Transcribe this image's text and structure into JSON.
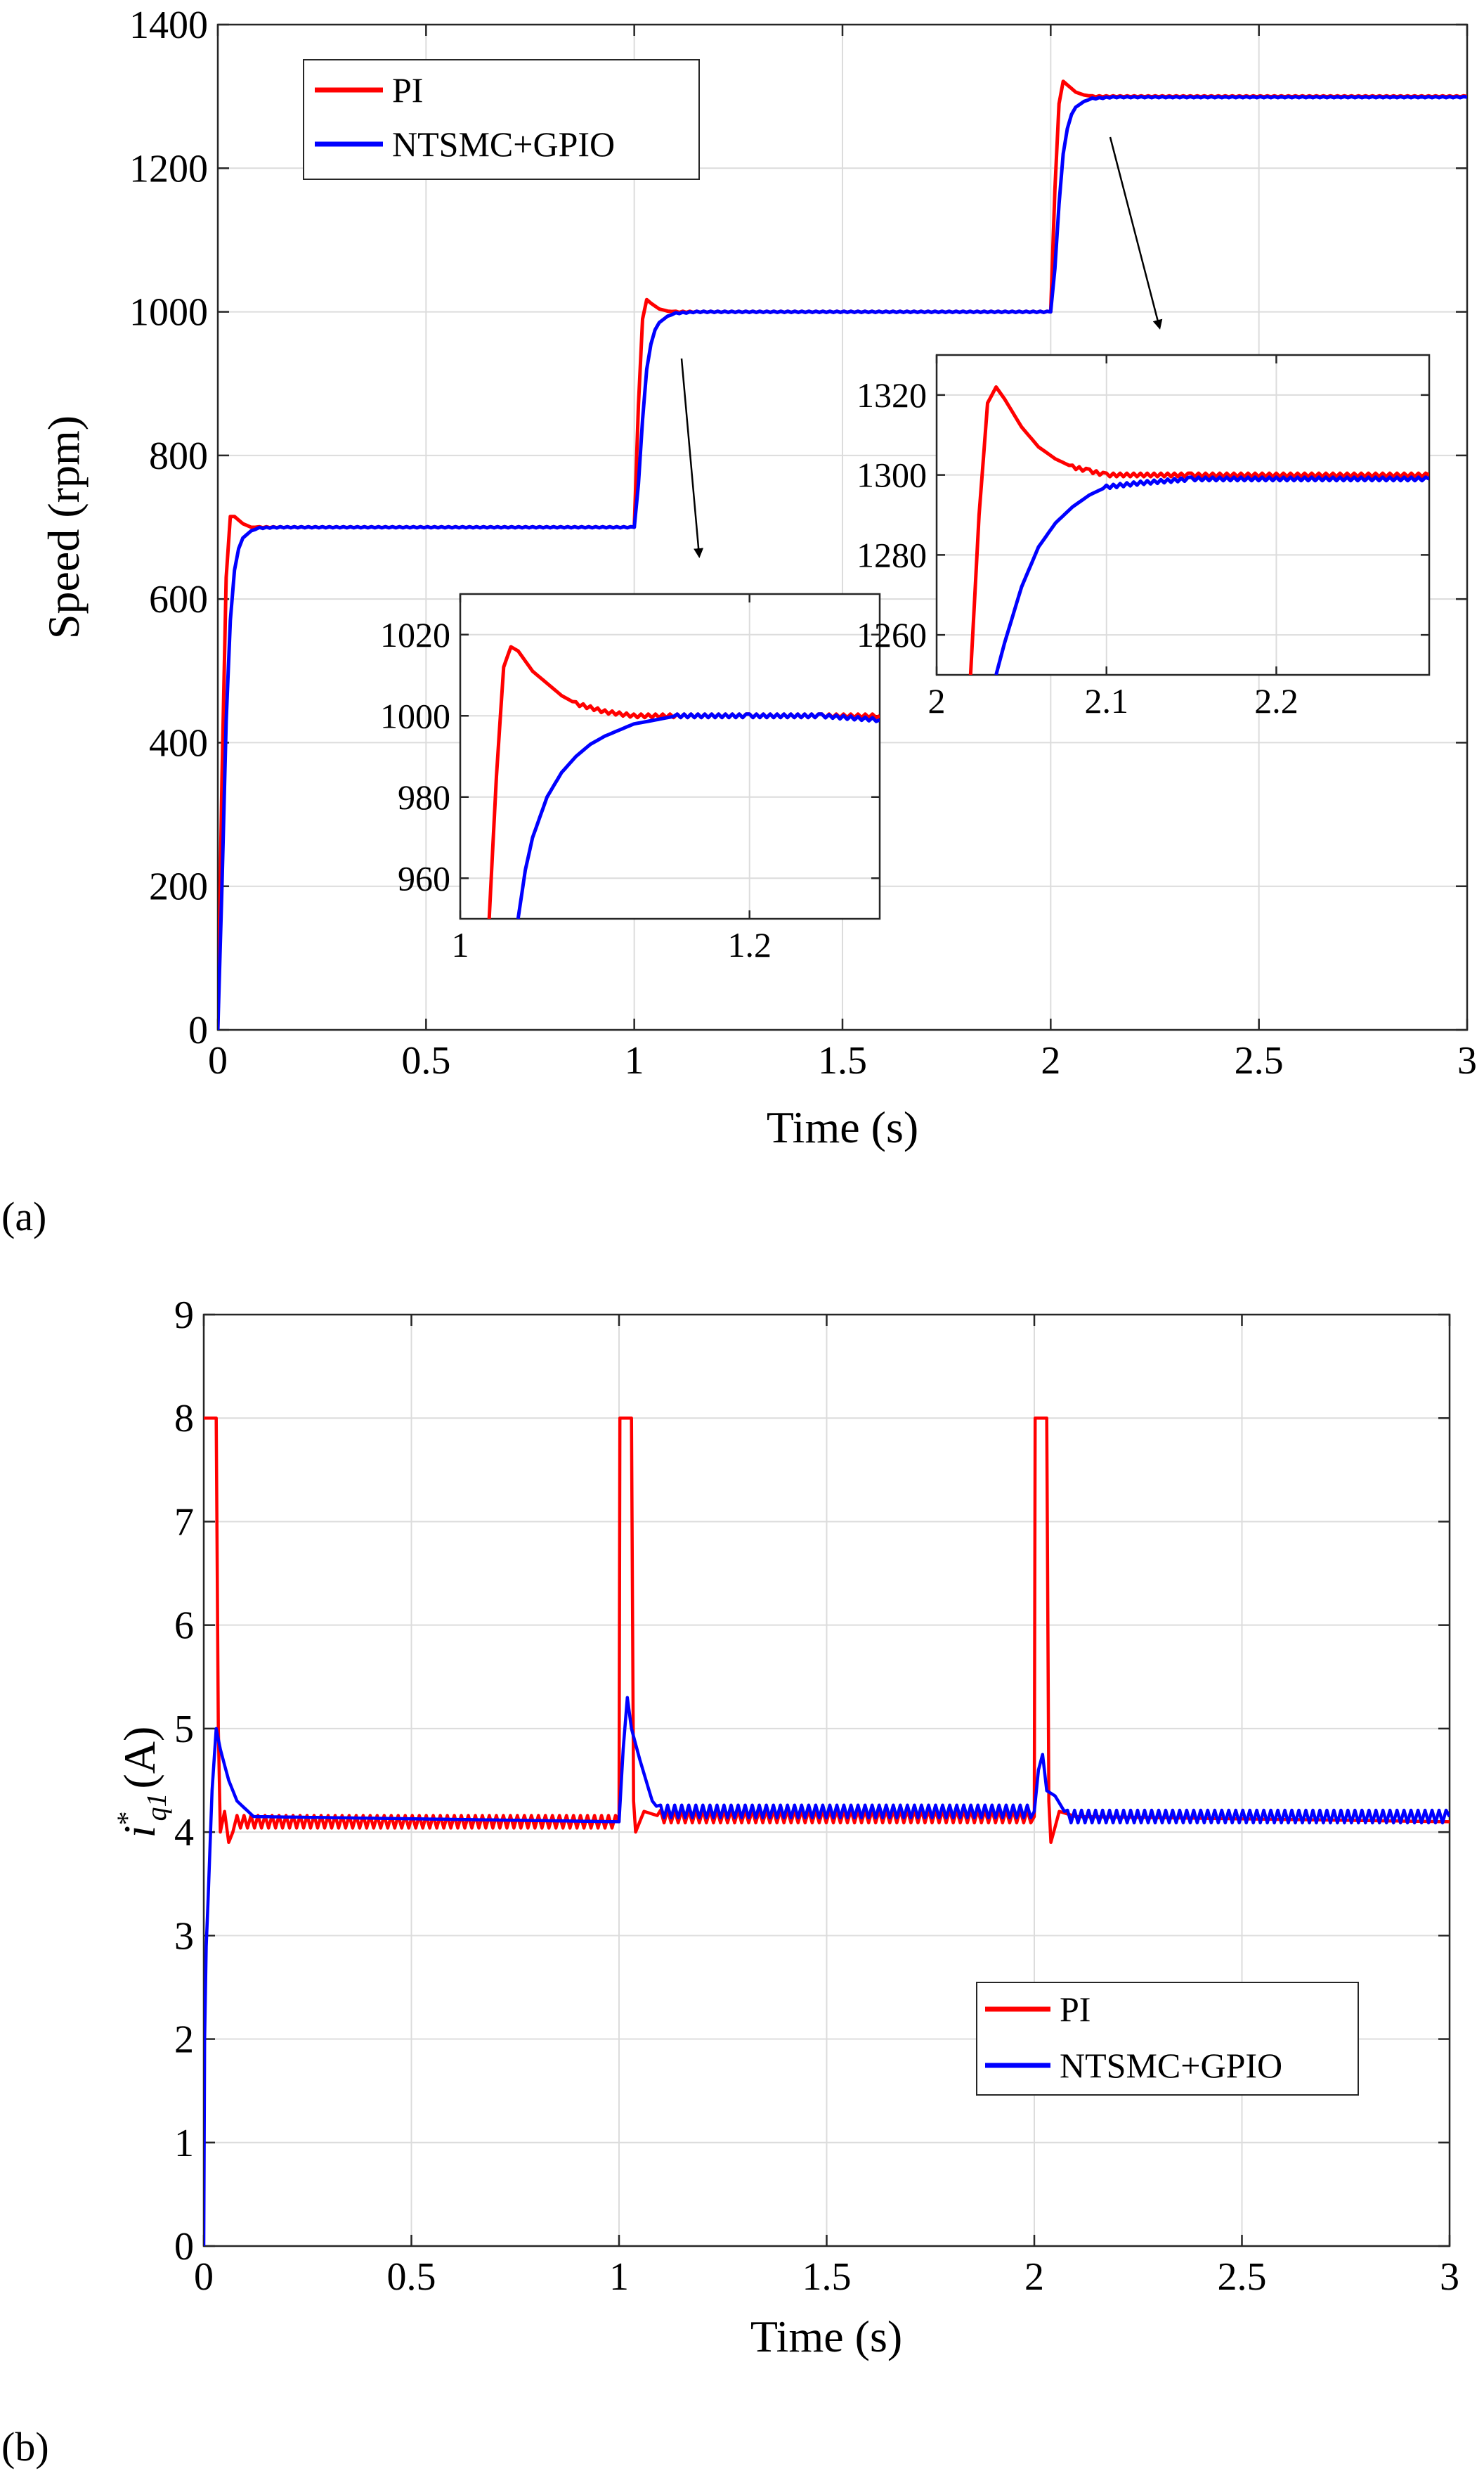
{
  "figure": {
    "panel_a_label": "(a)",
    "panel_b_label": "(b)"
  },
  "colors": {
    "PI": "#ff0000",
    "NTSMC+GPIO": "#0000ff",
    "grid": "#dcdcdc",
    "axes": "#262626"
  },
  "chart_data": [
    {
      "id": "a",
      "type": "line",
      "panel_label": "(a)",
      "xlabel": "Time (s)",
      "ylabel": "Speed (rpm)",
      "xlim": [
        0,
        3
      ],
      "ylim": [
        0,
        1400
      ],
      "xticks": [
        0,
        0.5,
        1,
        1.5,
        2,
        2.5,
        3
      ],
      "xtick_labels": [
        "0",
        "0.5",
        "1",
        "1.5",
        "2",
        "2.5",
        "3"
      ],
      "yticks": [
        0,
        200,
        400,
        600,
        800,
        1000,
        1200,
        1400
      ],
      "ytick_labels": [
        "0",
        "200",
        "400",
        "600",
        "800",
        "1000",
        "1200",
        "1400"
      ],
      "grid": true,
      "legend": {
        "entries": [
          "PI",
          "NTSMC+GPIO"
        ],
        "location": "top-left"
      },
      "series": [
        {
          "name": "PI",
          "color": "#ff0000",
          "x": [
            0,
            0.01,
            0.02,
            0.03,
            0.04,
            0.06,
            0.08,
            0.1,
            0.15,
            1.0,
            1.01,
            1.02,
            1.03,
            1.04,
            1.06,
            1.08,
            1.1,
            1.15,
            2.0,
            2.01,
            2.02,
            2.03,
            2.04,
            2.06,
            2.08,
            2.1,
            2.15,
            3.0
          ],
          "values": [
            0,
            350,
            630,
            715,
            715,
            705,
            700,
            700,
            700,
            700,
            870,
            990,
            1017,
            1012,
            1004,
            1001,
            1000,
            1000,
            1000,
            1170,
            1290,
            1321,
            1316,
            1306,
            1302,
            1300,
            1300,
            1300
          ]
        },
        {
          "name": "NTSMC+GPIO",
          "color": "#0000ff",
          "x": [
            0,
            0.01,
            0.02,
            0.03,
            0.04,
            0.05,
            0.06,
            0.08,
            0.1,
            0.15,
            1.0,
            1.01,
            1.02,
            1.03,
            1.04,
            1.05,
            1.06,
            1.08,
            1.1,
            1.15,
            2.0,
            2.01,
            2.02,
            2.03,
            2.04,
            2.05,
            2.06,
            2.08,
            2.1,
            2.15,
            3.0
          ],
          "values": [
            0,
            200,
            430,
            570,
            640,
            670,
            685,
            695,
            699,
            700,
            700,
            760,
            850,
            920,
            955,
            975,
            985,
            994,
            998,
            1000,
            1000,
            1060,
            1150,
            1220,
            1255,
            1275,
            1285,
            1293,
            1297,
            1299,
            1299
          ]
        }
      ],
      "insets": [
        {
          "xlim": [
            1.0,
            1.29
          ],
          "ylim": [
            950,
            1030
          ],
          "xticks": [
            1,
            1.2
          ],
          "xtick_labels": [
            "1",
            "1.2"
          ],
          "yticks": [
            960,
            980,
            1000,
            1020
          ],
          "ytick_labels": [
            "960",
            "980",
            "1000",
            "1020"
          ],
          "series": [
            {
              "name": "PI",
              "x": [
                1.02,
                1.025,
                1.03,
                1.035,
                1.04,
                1.05,
                1.06,
                1.07,
                1.08,
                1.09,
                1.1,
                1.12,
                1.15,
                1.2,
                1.25,
                1.29
              ],
              "values": [
                950,
                985,
                1012,
                1017,
                1016,
                1011,
                1008,
                1005,
                1003,
                1002,
                1001,
                1000,
                1000,
                1000,
                1000,
                1000
              ]
            },
            {
              "name": "NTSMC+GPIO",
              "x": [
                1.04,
                1.045,
                1.05,
                1.06,
                1.07,
                1.08,
                1.09,
                1.1,
                1.12,
                1.15,
                1.2,
                1.25,
                1.29
              ],
              "values": [
                950,
                962,
                970,
                980,
                986,
                990,
                993,
                995,
                998,
                1000,
                1000,
                1000,
                999
              ]
            }
          ]
        },
        {
          "xlim": [
            2.0,
            2.29
          ],
          "ylim": [
            1250,
            1330
          ],
          "xticks": [
            2,
            2.1,
            2.2
          ],
          "xtick_labels": [
            "2",
            "2.1",
            "2.2"
          ],
          "yticks": [
            1260,
            1280,
            1300,
            1320
          ],
          "ytick_labels": [
            "1260",
            "1280",
            "1300",
            "1320"
          ],
          "series": [
            {
              "name": "PI",
              "x": [
                2.02,
                2.025,
                2.03,
                2.035,
                2.04,
                2.05,
                2.06,
                2.07,
                2.08,
                2.09,
                2.1,
                2.12,
                2.15,
                2.2,
                2.25,
                2.29
              ],
              "values": [
                1250,
                1290,
                1318,
                1322,
                1319,
                1312,
                1307,
                1304,
                1302,
                1301,
                1300,
                1300,
                1300,
                1300,
                1300,
                1300
              ]
            },
            {
              "name": "NTSMC+GPIO",
              "x": [
                2.035,
                2.04,
                2.05,
                2.06,
                2.07,
                2.08,
                2.09,
                2.1,
                2.12,
                2.15,
                2.2,
                2.25,
                2.29
              ],
              "values": [
                1250,
                1258,
                1272,
                1282,
                1288,
                1292,
                1295,
                1297,
                1298,
                1299,
                1299,
                1299,
                1299
              ]
            }
          ]
        }
      ]
    },
    {
      "id": "b",
      "type": "line",
      "panel_label": "(b)",
      "xlabel": "Time (s)",
      "ylabel": "i*q1 (A)",
      "ylabel_parts": {
        "base": "i",
        "sup": "*",
        "sub": "q1",
        "unit": "(A)"
      },
      "xlim": [
        0,
        3
      ],
      "ylim": [
        0,
        9
      ],
      "xticks": [
        0,
        0.5,
        1,
        1.5,
        2,
        2.5,
        3
      ],
      "xtick_labels": [
        "0",
        "0.5",
        "1",
        "1.5",
        "2",
        "2.5",
        "3"
      ],
      "yticks": [
        0,
        1,
        2,
        3,
        4,
        5,
        6,
        7,
        8,
        9
      ],
      "ytick_labels": [
        "0",
        "1",
        "2",
        "3",
        "4",
        "5",
        "6",
        "7",
        "8",
        "9"
      ],
      "grid": true,
      "legend": {
        "entries": [
          "PI",
          "NTSMC+GPIO"
        ],
        "location": "lower-right"
      },
      "series": [
        {
          "name": "PI",
          "color": "#ff0000",
          "x": [
            0,
            0.0005,
            0.03,
            0.035,
            0.04,
            0.05,
            0.06,
            0.08,
            1.0,
            1.002,
            1.03,
            1.035,
            1.04,
            1.06,
            1.1,
            2.0,
            2.002,
            2.03,
            2.035,
            2.04,
            2.06,
            2.1,
            3.0
          ],
          "values": [
            8,
            8,
            8,
            5,
            4.0,
            4.2,
            3.9,
            4.1,
            4.1,
            8,
            8,
            4.3,
            4.0,
            4.2,
            4.15,
            4.15,
            8,
            8,
            4.3,
            3.9,
            4.2,
            4.15,
            4.1
          ]
        },
        {
          "name": "NTSMC+GPIO",
          "color": "#0000ff",
          "x": [
            0,
            0.002,
            0.006,
            0.01,
            0.02,
            0.03,
            0.04,
            0.06,
            0.08,
            0.12,
            1.0,
            1.01,
            1.02,
            1.03,
            1.05,
            1.08,
            1.1,
            2.0,
            2.01,
            2.02,
            2.03,
            2.05,
            2.08,
            3.0
          ],
          "values": [
            0,
            2.0,
            2.9,
            3.3,
            4.4,
            5.0,
            4.8,
            4.5,
            4.3,
            4.15,
            4.1,
            4.8,
            5.3,
            5.0,
            4.7,
            4.3,
            4.2,
            4.2,
            4.6,
            4.75,
            4.4,
            4.35,
            4.15,
            4.15
          ]
        }
      ]
    }
  ]
}
